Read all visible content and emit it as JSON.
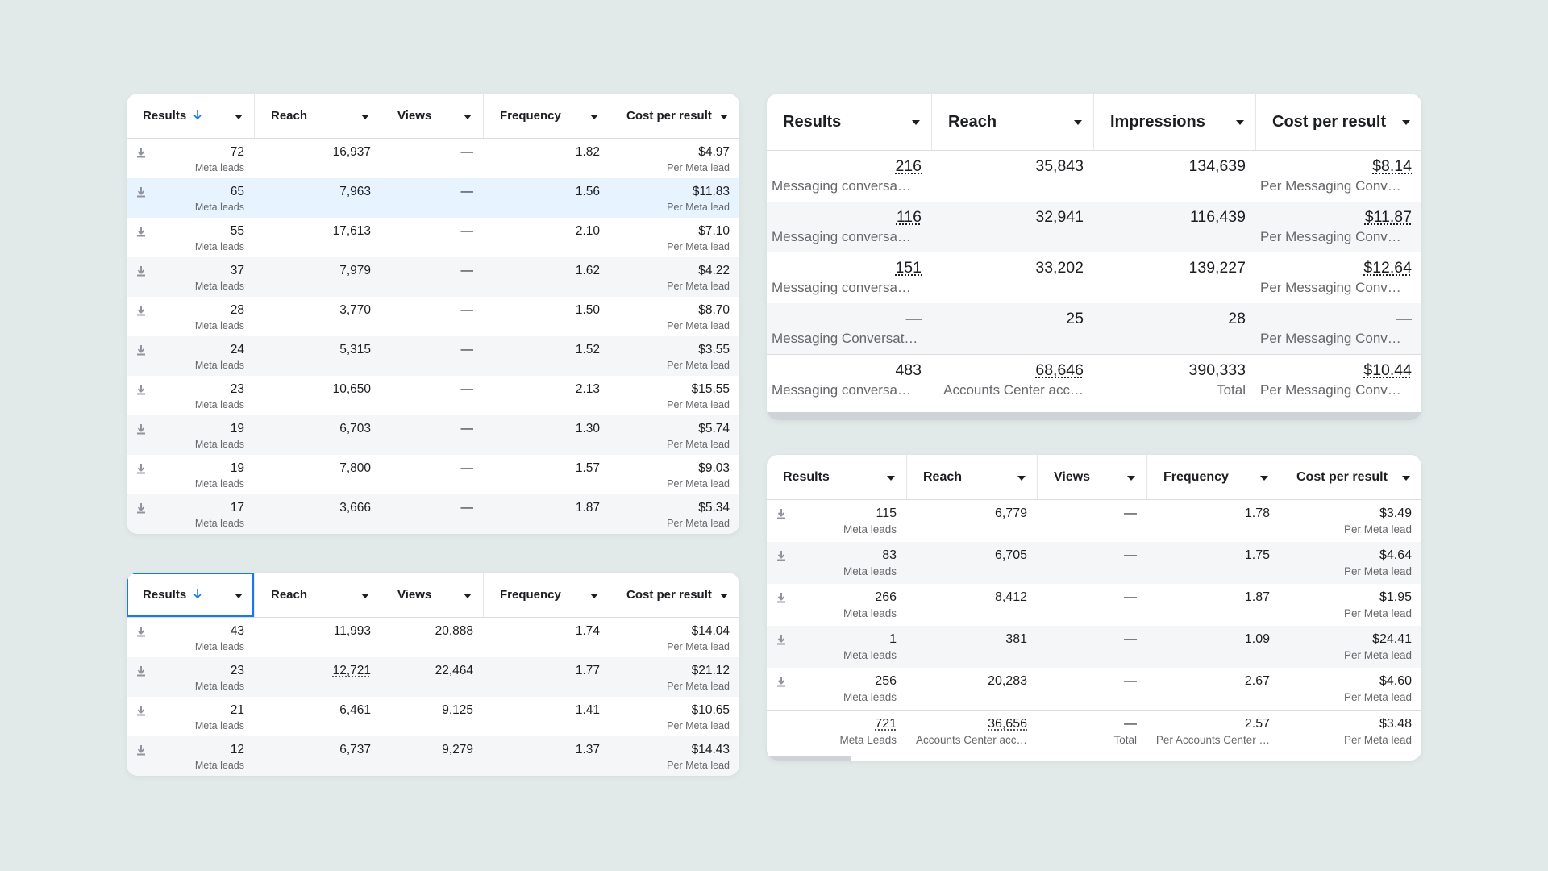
{
  "tables": [
    {
      "headers": [
        "Results",
        "Reach",
        "Views",
        "Frequency",
        "Cost per result"
      ],
      "rows": [
        [
          {
            "text": "72",
            "sub": "Meta leads"
          },
          {
            "text": "16,937"
          },
          {
            "text": "—"
          },
          {
            "text": "1.82"
          },
          {
            "text": "$4.97",
            "sub": "Per Meta lead"
          }
        ],
        [
          {
            "text": "65",
            "sub": "Meta leads"
          },
          {
            "text": "7,963"
          },
          {
            "text": "—"
          },
          {
            "text": "1.56"
          },
          {
            "text": "$11.83",
            "sub": "Per Meta lead"
          }
        ],
        [
          {
            "text": "55",
            "sub": "Meta leads"
          },
          {
            "text": "17,613"
          },
          {
            "text": "—"
          },
          {
            "text": "2.10"
          },
          {
            "text": "$7.10",
            "sub": "Per Meta lead"
          }
        ],
        [
          {
            "text": "37",
            "sub": "Meta leads"
          },
          {
            "text": "7,979"
          },
          {
            "text": "—"
          },
          {
            "text": "1.62"
          },
          {
            "text": "$4.22",
            "sub": "Per Meta lead"
          }
        ],
        [
          {
            "text": "28",
            "sub": "Meta leads"
          },
          {
            "text": "3,770"
          },
          {
            "text": "—"
          },
          {
            "text": "1.50"
          },
          {
            "text": "$8.70",
            "sub": "Per Meta lead"
          }
        ],
        [
          {
            "text": "24",
            "sub": "Meta leads"
          },
          {
            "text": "5,315"
          },
          {
            "text": "—"
          },
          {
            "text": "1.52"
          },
          {
            "text": "$3.55",
            "sub": "Per Meta lead"
          }
        ],
        [
          {
            "text": "23",
            "sub": "Meta leads"
          },
          {
            "text": "10,650"
          },
          {
            "text": "—"
          },
          {
            "text": "2.13"
          },
          {
            "text": "$15.55",
            "sub": "Per Meta lead"
          }
        ],
        [
          {
            "text": "19",
            "sub": "Meta leads"
          },
          {
            "text": "6,703"
          },
          {
            "text": "—"
          },
          {
            "text": "1.30"
          },
          {
            "text": "$5.74",
            "sub": "Per Meta lead"
          }
        ],
        [
          {
            "text": "19",
            "sub": "Meta leads"
          },
          {
            "text": "7,800"
          },
          {
            "text": "—"
          },
          {
            "text": "1.57"
          },
          {
            "text": "$9.03",
            "sub": "Per Meta lead"
          }
        ],
        [
          {
            "text": "17",
            "sub": "Meta leads"
          },
          {
            "text": "3,666"
          },
          {
            "text": "—"
          },
          {
            "text": "1.87"
          },
          {
            "text": "$5.34",
            "sub": "Per Meta lead"
          }
        ]
      ]
    },
    {
      "headers": [
        "Results",
        "Reach",
        "Views",
        "Frequency",
        "Cost per result"
      ],
      "rows": [
        [
          {
            "text": "43",
            "sub": "Meta leads"
          },
          {
            "text": "11,993"
          },
          {
            "text": "20,888"
          },
          {
            "text": "1.74"
          },
          {
            "text": "$14.04",
            "sub": "Per Meta lead"
          }
        ],
        [
          {
            "text": "23",
            "sub": "Meta leads"
          },
          {
            "text": "12,721",
            "underline": true
          },
          {
            "text": "22,464"
          },
          {
            "text": "1.77"
          },
          {
            "text": "$21.12",
            "sub": "Per Meta lead"
          }
        ],
        [
          {
            "text": "21",
            "sub": "Meta leads"
          },
          {
            "text": "6,461"
          },
          {
            "text": "9,125"
          },
          {
            "text": "1.41"
          },
          {
            "text": "$10.65",
            "sub": "Per Meta lead"
          }
        ],
        [
          {
            "text": "12",
            "sub": "Meta leads"
          },
          {
            "text": "6,737"
          },
          {
            "text": "9,279"
          },
          {
            "text": "1.37"
          },
          {
            "text": "$14.43",
            "sub": "Per Meta lead"
          }
        ]
      ]
    },
    {
      "headers": [
        "Results",
        "Reach",
        "Impressions",
        "Cost per result"
      ],
      "rows": [
        [
          {
            "text": "216",
            "sub": "Messaging conversa…",
            "underline": true
          },
          {
            "text": "35,843"
          },
          {
            "text": "134,639"
          },
          {
            "text": "$8.14",
            "sub": "Per Messaging Conv…",
            "underline": true
          }
        ],
        [
          {
            "text": "116",
            "sub": "Messaging conversa…",
            "underline": true
          },
          {
            "text": "32,941"
          },
          {
            "text": "116,439"
          },
          {
            "text": "$11.87",
            "sub": "Per Messaging Conv…",
            "underline": true
          }
        ],
        [
          {
            "text": "151",
            "sub": "Messaging conversa…",
            "underline": true
          },
          {
            "text": "33,202"
          },
          {
            "text": "139,227"
          },
          {
            "text": "$12.64",
            "sub": "Per Messaging Conv…",
            "underline": true
          }
        ],
        [
          {
            "text": "—",
            "sub": "Messaging Conversat…"
          },
          {
            "text": "25"
          },
          {
            "text": "28"
          },
          {
            "text": "—",
            "sub": "Per Messaging Conv…"
          }
        ]
      ],
      "total": [
        {
          "text": "483",
          "sub": "Messaging conversa…"
        },
        {
          "text": "68,646",
          "sub": "Accounts Center acc…",
          "underline": true
        },
        {
          "text": "390,333",
          "sub": "Total"
        },
        {
          "text": "$10.44",
          "sub": "Per Messaging Conv…",
          "underline": true
        }
      ]
    },
    {
      "headers": [
        "Results",
        "Reach",
        "Views",
        "Frequency",
        "Cost per result"
      ],
      "rows": [
        [
          {
            "text": "115",
            "sub": "Meta leads"
          },
          {
            "text": "6,779"
          },
          {
            "text": "—"
          },
          {
            "text": "1.78"
          },
          {
            "text": "$3.49",
            "sub": "Per Meta lead"
          }
        ],
        [
          {
            "text": "83",
            "sub": "Meta leads"
          },
          {
            "text": "6,705"
          },
          {
            "text": "—"
          },
          {
            "text": "1.75"
          },
          {
            "text": "$4.64",
            "sub": "Per Meta lead"
          }
        ],
        [
          {
            "text": "266",
            "sub": "Meta leads"
          },
          {
            "text": "8,412"
          },
          {
            "text": "—"
          },
          {
            "text": "1.87"
          },
          {
            "text": "$1.95",
            "sub": "Per Meta lead"
          }
        ],
        [
          {
            "text": "1",
            "sub": "Meta leads"
          },
          {
            "text": "381"
          },
          {
            "text": "—"
          },
          {
            "text": "1.09"
          },
          {
            "text": "$24.41",
            "sub": "Per Meta lead"
          }
        ],
        [
          {
            "text": "256",
            "sub": "Meta leads"
          },
          {
            "text": "20,283"
          },
          {
            "text": "—"
          },
          {
            "text": "2.67"
          },
          {
            "text": "$4.60",
            "sub": "Per Meta lead"
          }
        ]
      ],
      "total": [
        {
          "text": "721",
          "sub": "Meta Leads",
          "underline": true
        },
        {
          "text": "36,656",
          "sub": "Accounts Center acc…",
          "underline": true
        },
        {
          "text": "—",
          "sub": "Total"
        },
        {
          "text": "2.57",
          "sub": "Per Accounts Center …"
        },
        {
          "text": "$3.48",
          "sub": "Per Meta lead"
        }
      ]
    }
  ]
}
